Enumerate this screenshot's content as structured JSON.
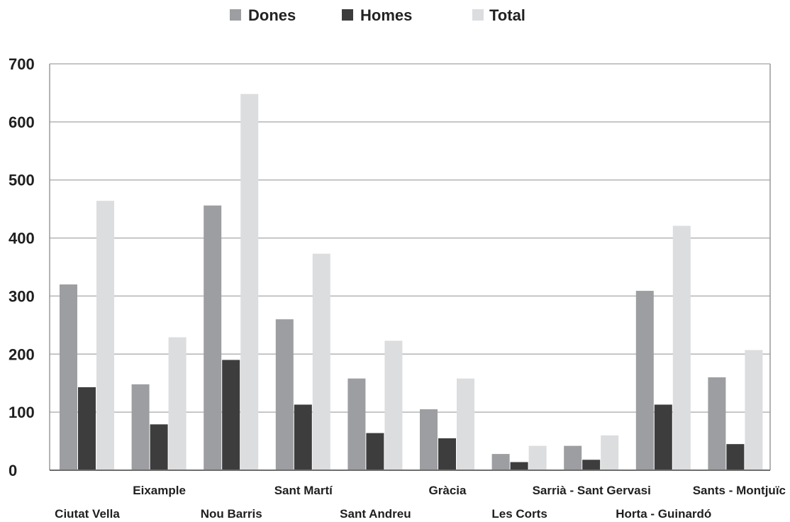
{
  "chart_data": {
    "type": "bar",
    "title": "",
    "xlabel": "",
    "ylabel": "",
    "ylim": [
      0,
      700
    ],
    "yticks": [
      0,
      100,
      200,
      300,
      400,
      500,
      600,
      700
    ],
    "grid": true,
    "legend_position": "top-center",
    "categories": [
      "Ciutat Vella",
      "Eixample",
      "Nou Barris",
      "Sant Martí",
      "Sant Andreu",
      "Gràcia",
      "Les Corts",
      "Sarrià - Sant Gervasi",
      "Horta - Guinardó",
      "Sants - Montjuïc"
    ],
    "series": [
      {
        "name": "Dones",
        "color": "#9d9ea1",
        "values": [
          320,
          148,
          456,
          260,
          158,
          105,
          28,
          42,
          309,
          160
        ]
      },
      {
        "name": "Homes",
        "color": "#3d3d3d",
        "values": [
          143,
          79,
          190,
          113,
          64,
          55,
          14,
          18,
          113,
          45
        ]
      },
      {
        "name": "Total",
        "color": "#dcdddf",
        "values": [
          464,
          229,
          648,
          373,
          223,
          158,
          42,
          60,
          421,
          207
        ]
      }
    ]
  }
}
